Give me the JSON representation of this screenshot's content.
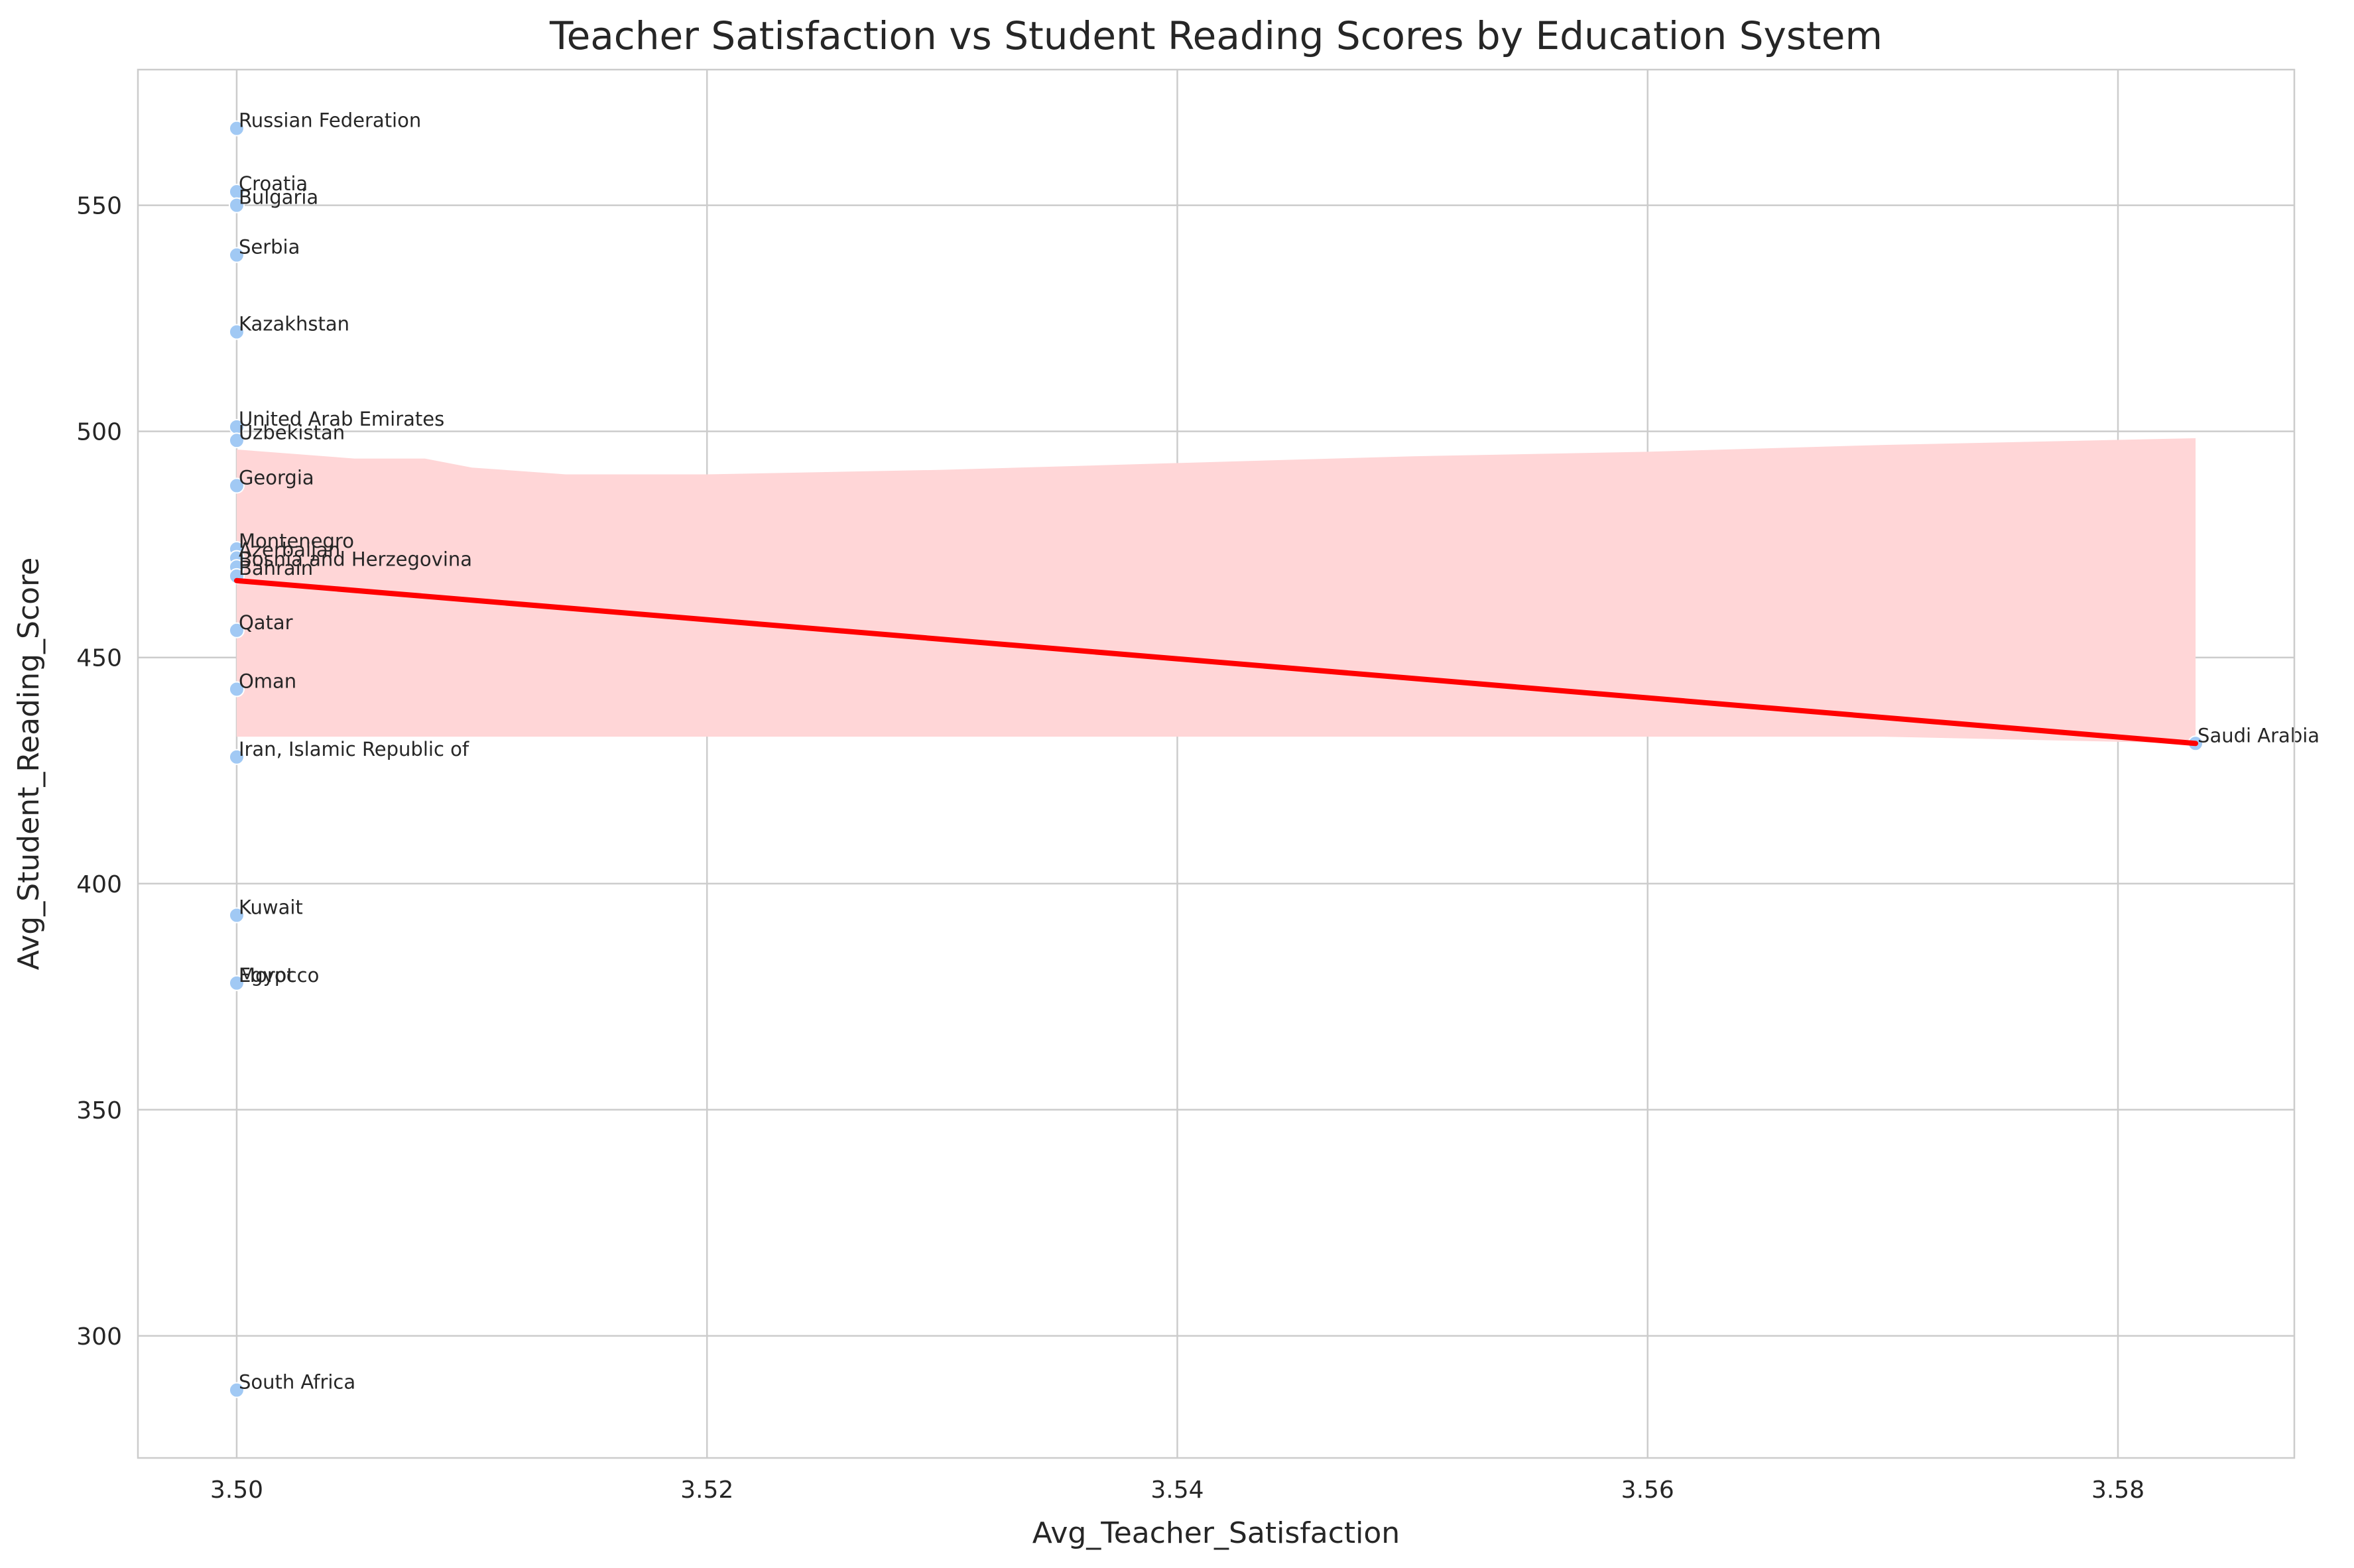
{
  "chart_data": {
    "type": "scatter",
    "title": "Teacher Satisfaction vs Student Reading Scores by Education System",
    "xlabel": "Avg_Teacher_Satisfaction",
    "ylabel": "Avg_Student_Reading_Score",
    "xlim": [
      3.4958,
      3.5875
    ],
    "ylim": [
      273,
      580
    ],
    "xticks": [
      3.5,
      3.52,
      3.54,
      3.56,
      3.58
    ],
    "xtick_labels": [
      "3.50",
      "3.52",
      "3.54",
      "3.56",
      "3.58"
    ],
    "yticks": [
      300,
      350,
      400,
      450,
      500,
      550
    ],
    "ytick_labels": [
      "300",
      "350",
      "400",
      "450",
      "500",
      "550"
    ],
    "grid": true,
    "colors": {
      "points": "#a1c9f4",
      "trend": "#ff0000",
      "band": "#ffd6d7",
      "grid": "#cccccc",
      "spine": "#cccccc"
    },
    "points": [
      {
        "label": "Russian Federation",
        "x": 3.5,
        "y": 567
      },
      {
        "label": "Croatia",
        "x": 3.5,
        "y": 553
      },
      {
        "label": "Bulgaria",
        "x": 3.5,
        "y": 550
      },
      {
        "label": "Serbia",
        "x": 3.5,
        "y": 539
      },
      {
        "label": "Kazakhstan",
        "x": 3.5,
        "y": 522
      },
      {
        "label": "United Arab Emirates",
        "x": 3.5,
        "y": 501
      },
      {
        "label": "Uzbekistan",
        "x": 3.5,
        "y": 498
      },
      {
        "label": "Georgia",
        "x": 3.5,
        "y": 488
      },
      {
        "label": "Montenegro",
        "x": 3.5,
        "y": 474
      },
      {
        "label": "Azerbaijan",
        "x": 3.5,
        "y": 472
      },
      {
        "label": "Bosnia and Herzegovina",
        "x": 3.5,
        "y": 470
      },
      {
        "label": "Bahrain",
        "x": 3.5,
        "y": 468
      },
      {
        "label": "Qatar",
        "x": 3.5,
        "y": 456
      },
      {
        "label": "Oman",
        "x": 3.5,
        "y": 443
      },
      {
        "label": "Iran, Islamic Republic of",
        "x": 3.5,
        "y": 428
      },
      {
        "label": "Saudi Arabia",
        "x": 3.5833,
        "y": 431
      },
      {
        "label": "Kuwait",
        "x": 3.5,
        "y": 393
      },
      {
        "label": "Morocco",
        "x": 3.5,
        "y": 378
      },
      {
        "label": "Egypt",
        "x": 3.5,
        "y": 378
      },
      {
        "label": "South Africa",
        "x": 3.5,
        "y": 288
      }
    ],
    "trend_line": {
      "x": [
        3.5,
        3.5833
      ],
      "y": [
        467,
        431
      ]
    },
    "confidence_band": {
      "x": [
        3.5,
        3.505,
        3.508,
        3.51,
        3.514,
        3.52,
        3.53,
        3.54,
        3.55,
        3.56,
        3.57,
        3.5833
      ],
      "upper": [
        496,
        494,
        494,
        492,
        490.5,
        490.5,
        491.5,
        493,
        494.5,
        495.5,
        497,
        498.5
      ],
      "lower": [
        432.5,
        432.5,
        432.5,
        432.5,
        432.5,
        432.5,
        432.5,
        432.5,
        432.5,
        432.5,
        432.5,
        431
      ]
    }
  }
}
